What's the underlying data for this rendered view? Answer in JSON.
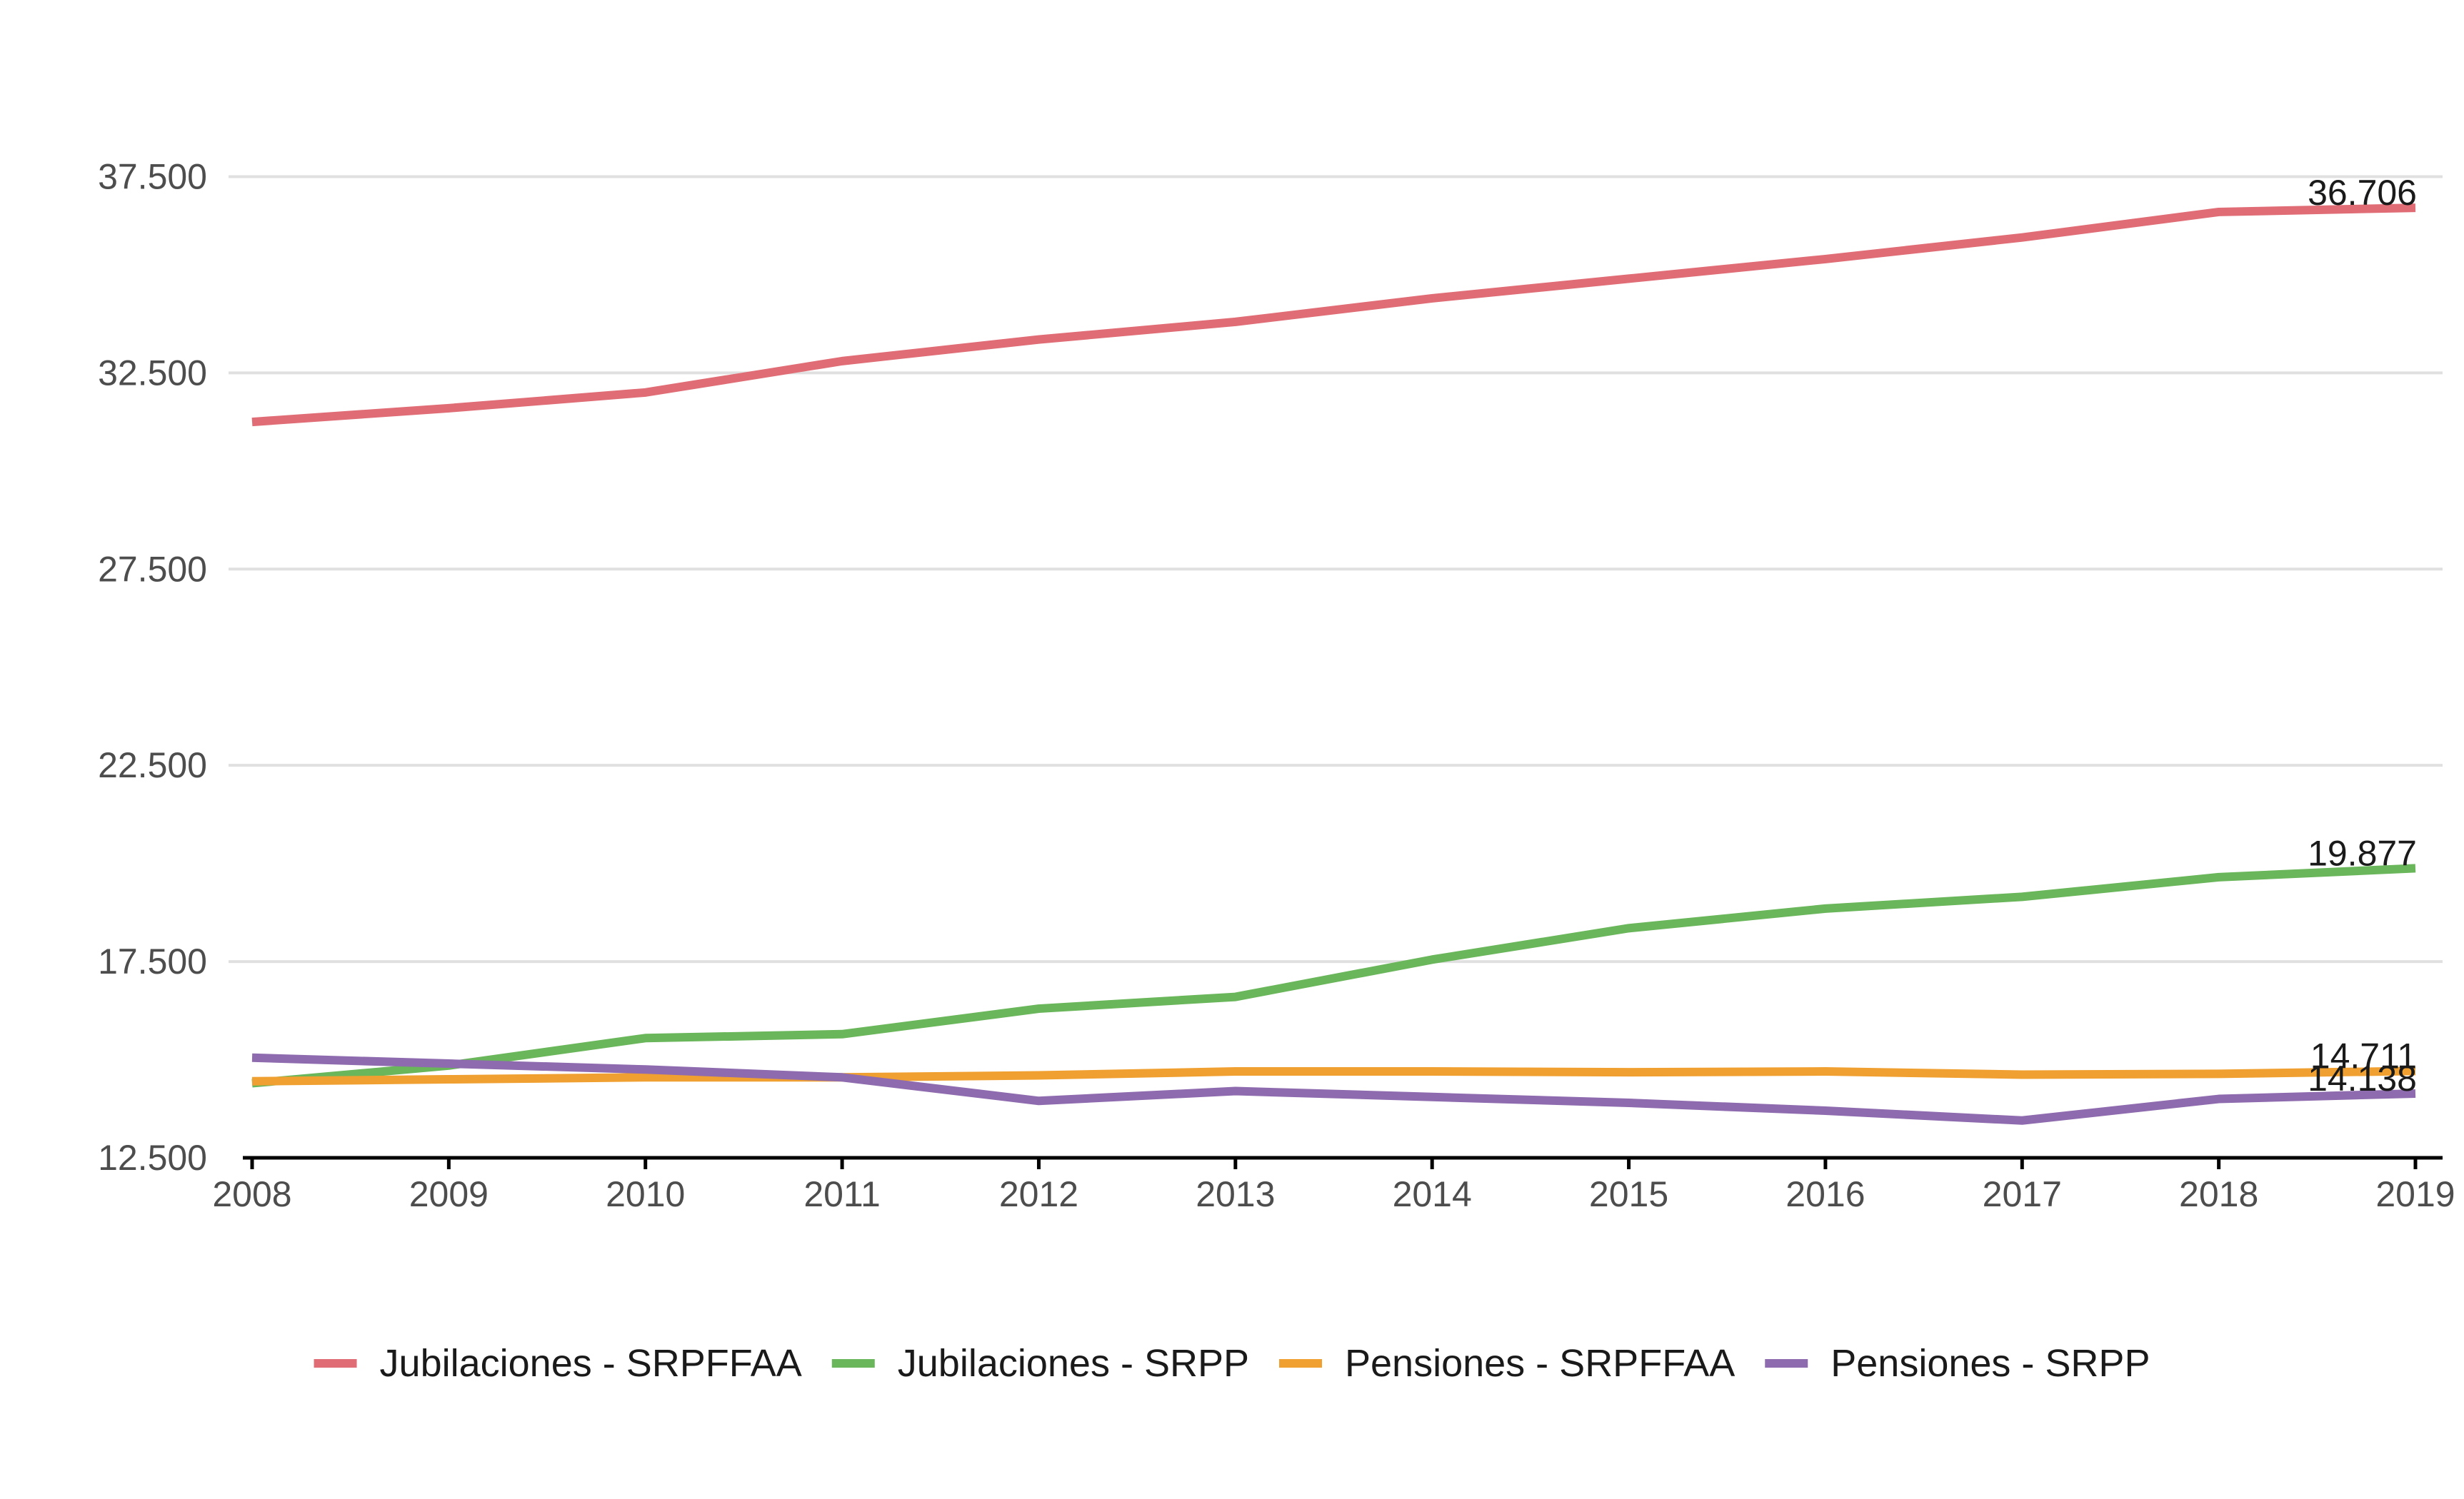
{
  "chart_data": {
    "type": "line",
    "title": "",
    "xlabel": "",
    "ylabel": "",
    "x": [
      2008,
      2009,
      2010,
      2011,
      2012,
      2013,
      2014,
      2015,
      2016,
      2017,
      2018,
      2019
    ],
    "x_tick_labels": [
      "2008",
      "2009",
      "2010",
      "2011",
      "2012",
      "2013",
      "2014",
      "2015",
      "2016",
      "2017",
      "2018",
      "2019"
    ],
    "ylim": [
      12500,
      40000
    ],
    "y_ticks": [
      12500,
      17500,
      22500,
      27500,
      32500,
      37500
    ],
    "y_tick_labels": [
      "12.500",
      "17.500",
      "22.500",
      "27.500",
      "32.500",
      "37.500"
    ],
    "grid": true,
    "legend_position": "bottom",
    "series": [
      {
        "name": "Jubilaciones - SRPFFAA",
        "color": "#E06C75",
        "values": [
          31250,
          31600,
          32000,
          32800,
          33350,
          33800,
          34400,
          34900,
          35400,
          35950,
          36600,
          36706
        ],
        "end_label": "36.706"
      },
      {
        "name": "Jubilaciones - SRPP",
        "color": "#6AB65A",
        "values": [
          14400,
          14850,
          15550,
          15650,
          16300,
          16600,
          17550,
          18350,
          18850,
          19150,
          19650,
          19877
        ],
        "end_label": "19.877"
      },
      {
        "name": "Pensiones - SRPFFAA",
        "color": "#F0A030",
        "values": [
          14450,
          14500,
          14550,
          14550,
          14600,
          14700,
          14700,
          14680,
          14700,
          14620,
          14640,
          14711
        ],
        "end_label": "14.711"
      },
      {
        "name": "Pensiones - SRPP",
        "color": "#8E6BAE",
        "values": [
          15050,
          14900,
          14750,
          14550,
          13950,
          14200,
          14050,
          13900,
          13700,
          13450,
          14000,
          14138
        ],
        "end_label": "14.138"
      }
    ]
  }
}
